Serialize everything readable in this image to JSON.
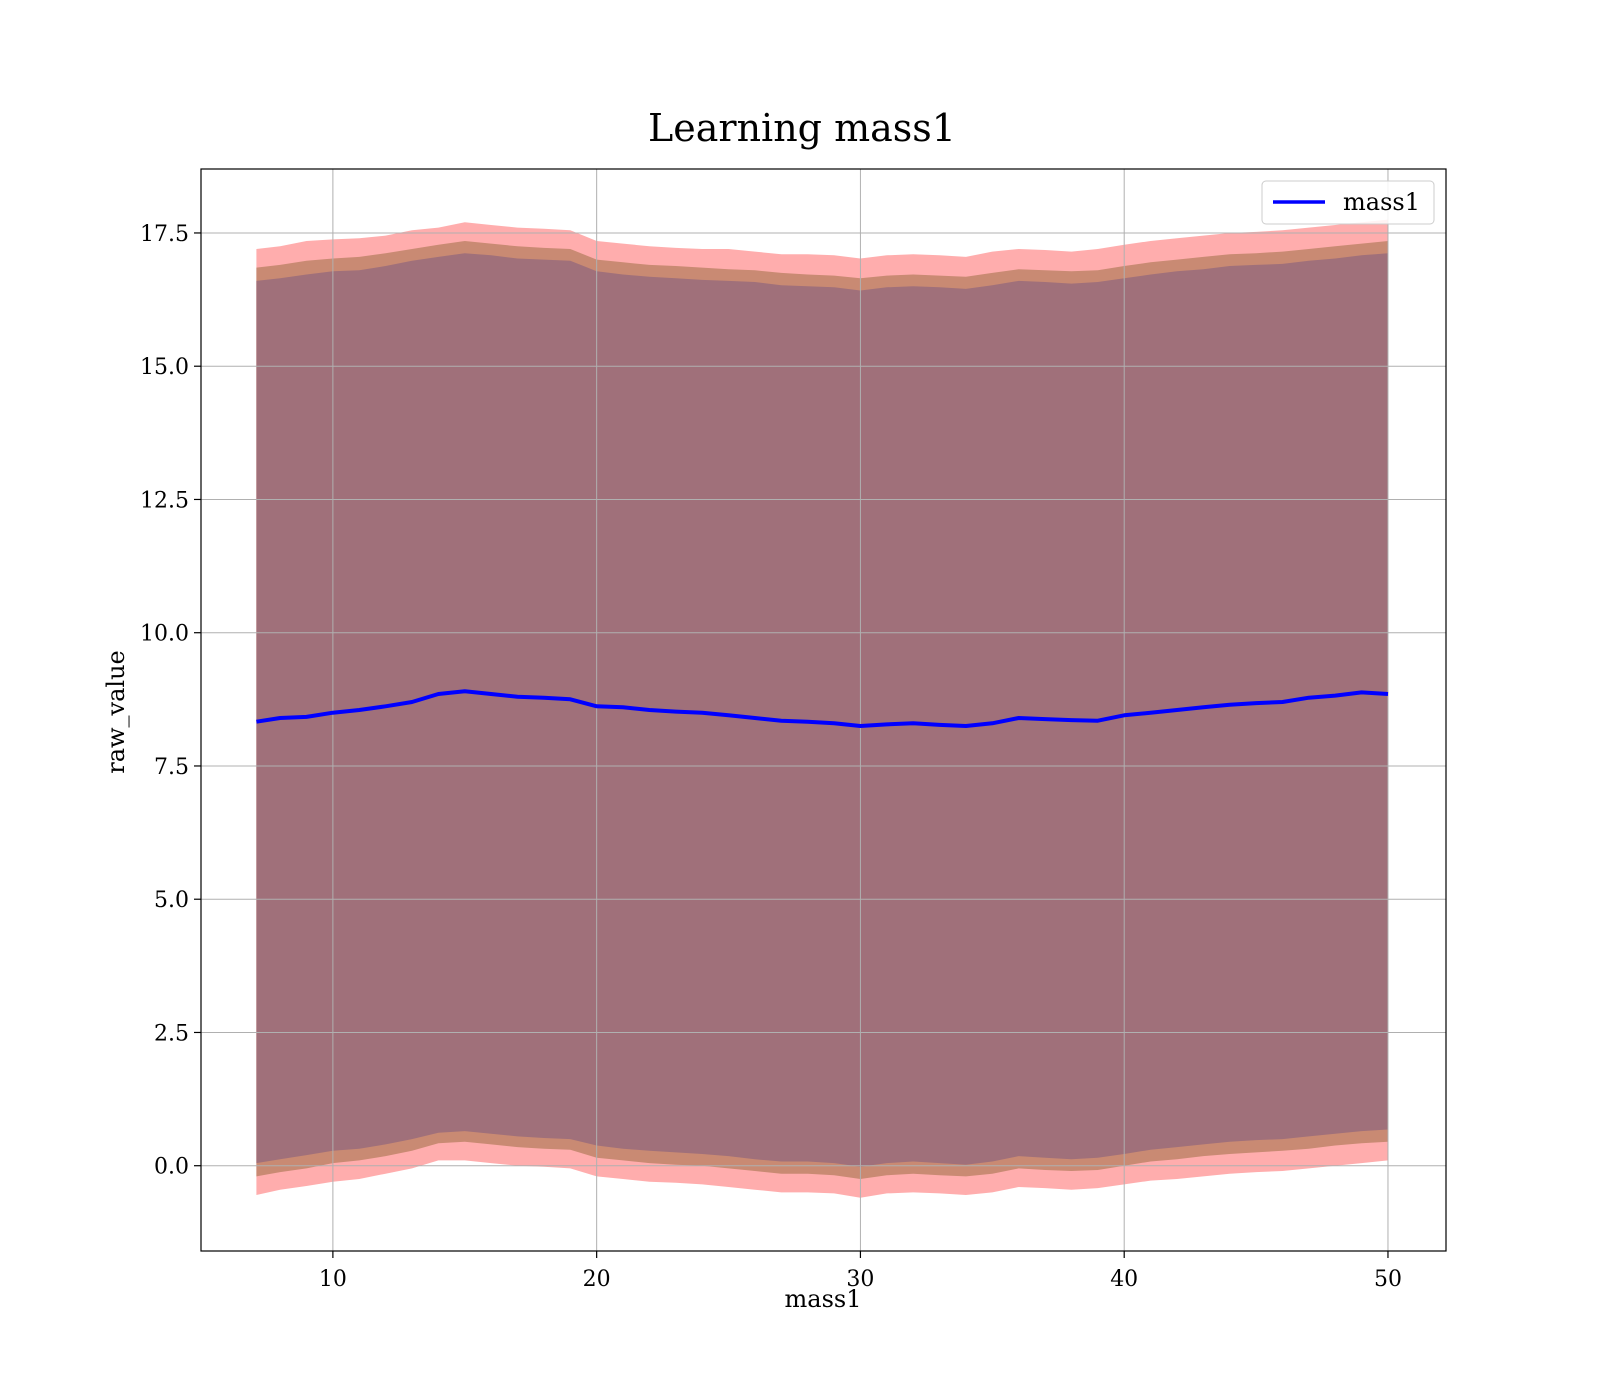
{
  "chart_data": {
    "type": "line",
    "title": "Learning mass1",
    "xlabel": "mass1",
    "ylabel": "raw_value",
    "xlim": [
      5.0,
      52.2
    ],
    "ylim": [
      -1.6,
      18.7
    ],
    "xticks": [
      10,
      20,
      30,
      40,
      50
    ],
    "xtick_labels": [
      "10",
      "20",
      "30",
      "40",
      "50"
    ],
    "yticks": [
      0.0,
      2.5,
      5.0,
      7.5,
      10.0,
      12.5,
      15.0,
      17.5
    ],
    "ytick_labels": [
      "0.0",
      "2.5",
      "5.0",
      "7.5",
      "10.0",
      "12.5",
      "15.0",
      "17.5"
    ],
    "grid": true,
    "legend": {
      "position": "top-right",
      "entries": [
        "mass1"
      ]
    },
    "colors": {
      "line": "#0000ff",
      "outer_band": "#ff9999",
      "middle_band": "#c98a73",
      "inner_band": "#a0707a"
    },
    "x": [
      7.1,
      8,
      9,
      10,
      11,
      12,
      13,
      14,
      15,
      16,
      17,
      18,
      19,
      20,
      21,
      22,
      23,
      24,
      25,
      26,
      27,
      28,
      29,
      30,
      31,
      32,
      33,
      34,
      35,
      36,
      37,
      38,
      39,
      40,
      41,
      42,
      43,
      44,
      45,
      46,
      47,
      48,
      49,
      50
    ],
    "series": [
      {
        "name": "mass1",
        "values": [
          8.33,
          8.4,
          8.42,
          8.5,
          8.55,
          8.62,
          8.7,
          8.85,
          8.9,
          8.85,
          8.8,
          8.78,
          8.75,
          8.62,
          8.6,
          8.55,
          8.52,
          8.5,
          8.45,
          8.4,
          8.35,
          8.33,
          8.3,
          8.25,
          8.28,
          8.3,
          8.27,
          8.25,
          8.3,
          8.4,
          8.38,
          8.36,
          8.35,
          8.45,
          8.5,
          8.55,
          8.6,
          8.65,
          8.68,
          8.7,
          8.78,
          8.82,
          8.88,
          8.85
        ]
      }
    ],
    "bands": [
      {
        "upper": [
          17.2,
          17.25,
          17.35,
          17.38,
          17.4,
          17.45,
          17.55,
          17.6,
          17.7,
          17.65,
          17.6,
          17.58,
          17.55,
          17.35,
          17.3,
          17.25,
          17.22,
          17.2,
          17.2,
          17.15,
          17.1,
          17.1,
          17.08,
          17.02,
          17.08,
          17.1,
          17.08,
          17.05,
          17.15,
          17.2,
          17.18,
          17.15,
          17.2,
          17.28,
          17.35,
          17.4,
          17.45,
          17.5,
          17.52,
          17.55,
          17.6,
          17.65,
          17.7,
          17.75
        ],
        "lower": [
          -0.55,
          -0.45,
          -0.38,
          -0.3,
          -0.25,
          -0.15,
          -0.05,
          0.1,
          0.1,
          0.05,
          0.0,
          -0.02,
          -0.05,
          -0.2,
          -0.25,
          -0.3,
          -0.32,
          -0.35,
          -0.4,
          -0.45,
          -0.5,
          -0.5,
          -0.52,
          -0.6,
          -0.52,
          -0.5,
          -0.52,
          -0.55,
          -0.5,
          -0.4,
          -0.42,
          -0.45,
          -0.42,
          -0.35,
          -0.28,
          -0.25,
          -0.2,
          -0.15,
          -0.12,
          -0.1,
          -0.05,
          0.0,
          0.05,
          0.1
        ]
      },
      {
        "upper": [
          16.85,
          16.9,
          16.98,
          17.02,
          17.05,
          17.12,
          17.2,
          17.28,
          17.35,
          17.3,
          17.25,
          17.22,
          17.2,
          17.0,
          16.95,
          16.9,
          16.88,
          16.85,
          16.82,
          16.8,
          16.75,
          16.72,
          16.7,
          16.65,
          16.7,
          16.72,
          16.7,
          16.68,
          16.75,
          16.82,
          16.8,
          16.78,
          16.8,
          16.88,
          16.95,
          17.0,
          17.05,
          17.1,
          17.12,
          17.15,
          17.2,
          17.25,
          17.3,
          17.35
        ],
        "lower": [
          -0.2,
          -0.12,
          -0.05,
          0.05,
          0.1,
          0.18,
          0.28,
          0.42,
          0.45,
          0.4,
          0.35,
          0.32,
          0.3,
          0.15,
          0.1,
          0.05,
          0.02,
          0.0,
          -0.05,
          -0.1,
          -0.15,
          -0.15,
          -0.18,
          -0.25,
          -0.18,
          -0.15,
          -0.18,
          -0.2,
          -0.15,
          -0.05,
          -0.08,
          -0.1,
          -0.08,
          0.0,
          0.08,
          0.12,
          0.18,
          0.22,
          0.25,
          0.28,
          0.32,
          0.38,
          0.42,
          0.45
        ]
      },
      {
        "upper": [
          16.6,
          16.65,
          16.72,
          16.78,
          16.8,
          16.88,
          16.98,
          17.05,
          17.12,
          17.08,
          17.02,
          17.0,
          16.98,
          16.78,
          16.72,
          16.68,
          16.65,
          16.62,
          16.6,
          16.58,
          16.52,
          16.5,
          16.48,
          16.42,
          16.48,
          16.5,
          16.48,
          16.45,
          16.52,
          16.6,
          16.58,
          16.55,
          16.58,
          16.65,
          16.72,
          16.78,
          16.82,
          16.88,
          16.9,
          16.92,
          16.98,
          17.02,
          17.08,
          17.12
        ],
        "lower": [
          0.05,
          0.12,
          0.2,
          0.28,
          0.32,
          0.4,
          0.5,
          0.62,
          0.65,
          0.6,
          0.55,
          0.52,
          0.5,
          0.38,
          0.32,
          0.28,
          0.25,
          0.22,
          0.18,
          0.12,
          0.08,
          0.08,
          0.05,
          -0.02,
          0.05,
          0.08,
          0.05,
          0.02,
          0.08,
          0.18,
          0.15,
          0.12,
          0.15,
          0.22,
          0.3,
          0.35,
          0.4,
          0.45,
          0.48,
          0.5,
          0.55,
          0.6,
          0.65,
          0.68
        ]
      }
    ]
  }
}
